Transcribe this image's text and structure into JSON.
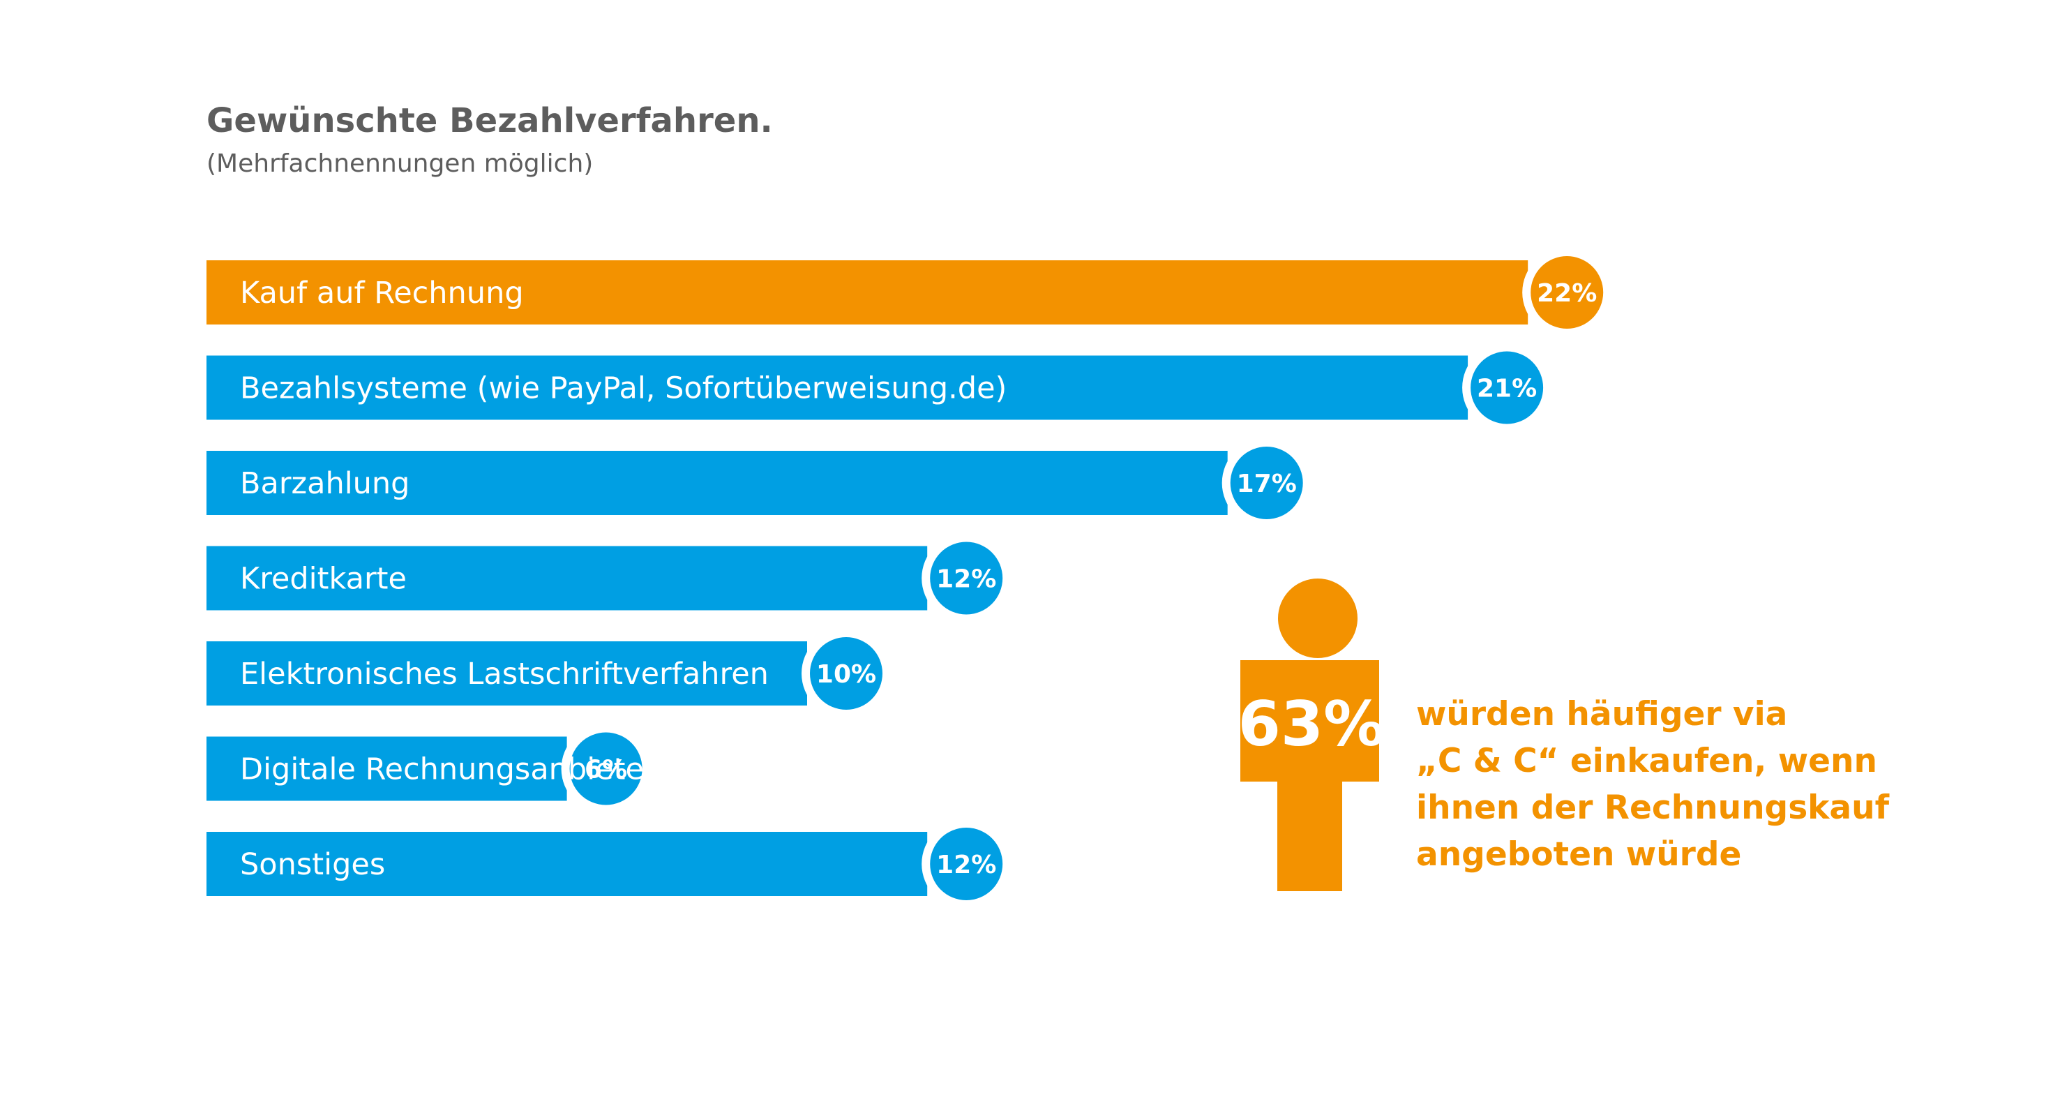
{
  "title": "Gewünschte Bezahlverfahren.",
  "subtitle": "(Mehrfachnennungen möglich)",
  "colors": {
    "highlight": "#f39200",
    "bar": "#009fe3",
    "text": "#5d5d5d"
  },
  "chart_data": {
    "type": "bar",
    "orientation": "horizontal",
    "unit": "%",
    "xlim": [
      0,
      22
    ],
    "grid": false,
    "legend": "none",
    "categories": [
      "Kauf auf Rechnung",
      "Bezahlsysteme (wie PayPal, Sofortüberweisung.de)",
      "Barzahlung",
      "Kreditkarte",
      "Elektronisches Lastschriftverfahren",
      "Digitale Rechnungsanbieter",
      "Sonstiges"
    ],
    "values": [
      22,
      21,
      17,
      12,
      10,
      6,
      12
    ],
    "value_labels": [
      "22%",
      "21%",
      "17%",
      "12%",
      "10%",
      "6%",
      "12%"
    ],
    "highlighted_category": "Kauf auf Rechnung"
  },
  "callout": {
    "icon": "person-icon",
    "value": 63,
    "percent_label": "63%",
    "lines": [
      "würden häufiger via",
      "„C & C“ einkaufen, wenn",
      "ihnen der Rechnungskauf",
      "angeboten würde"
    ]
  }
}
